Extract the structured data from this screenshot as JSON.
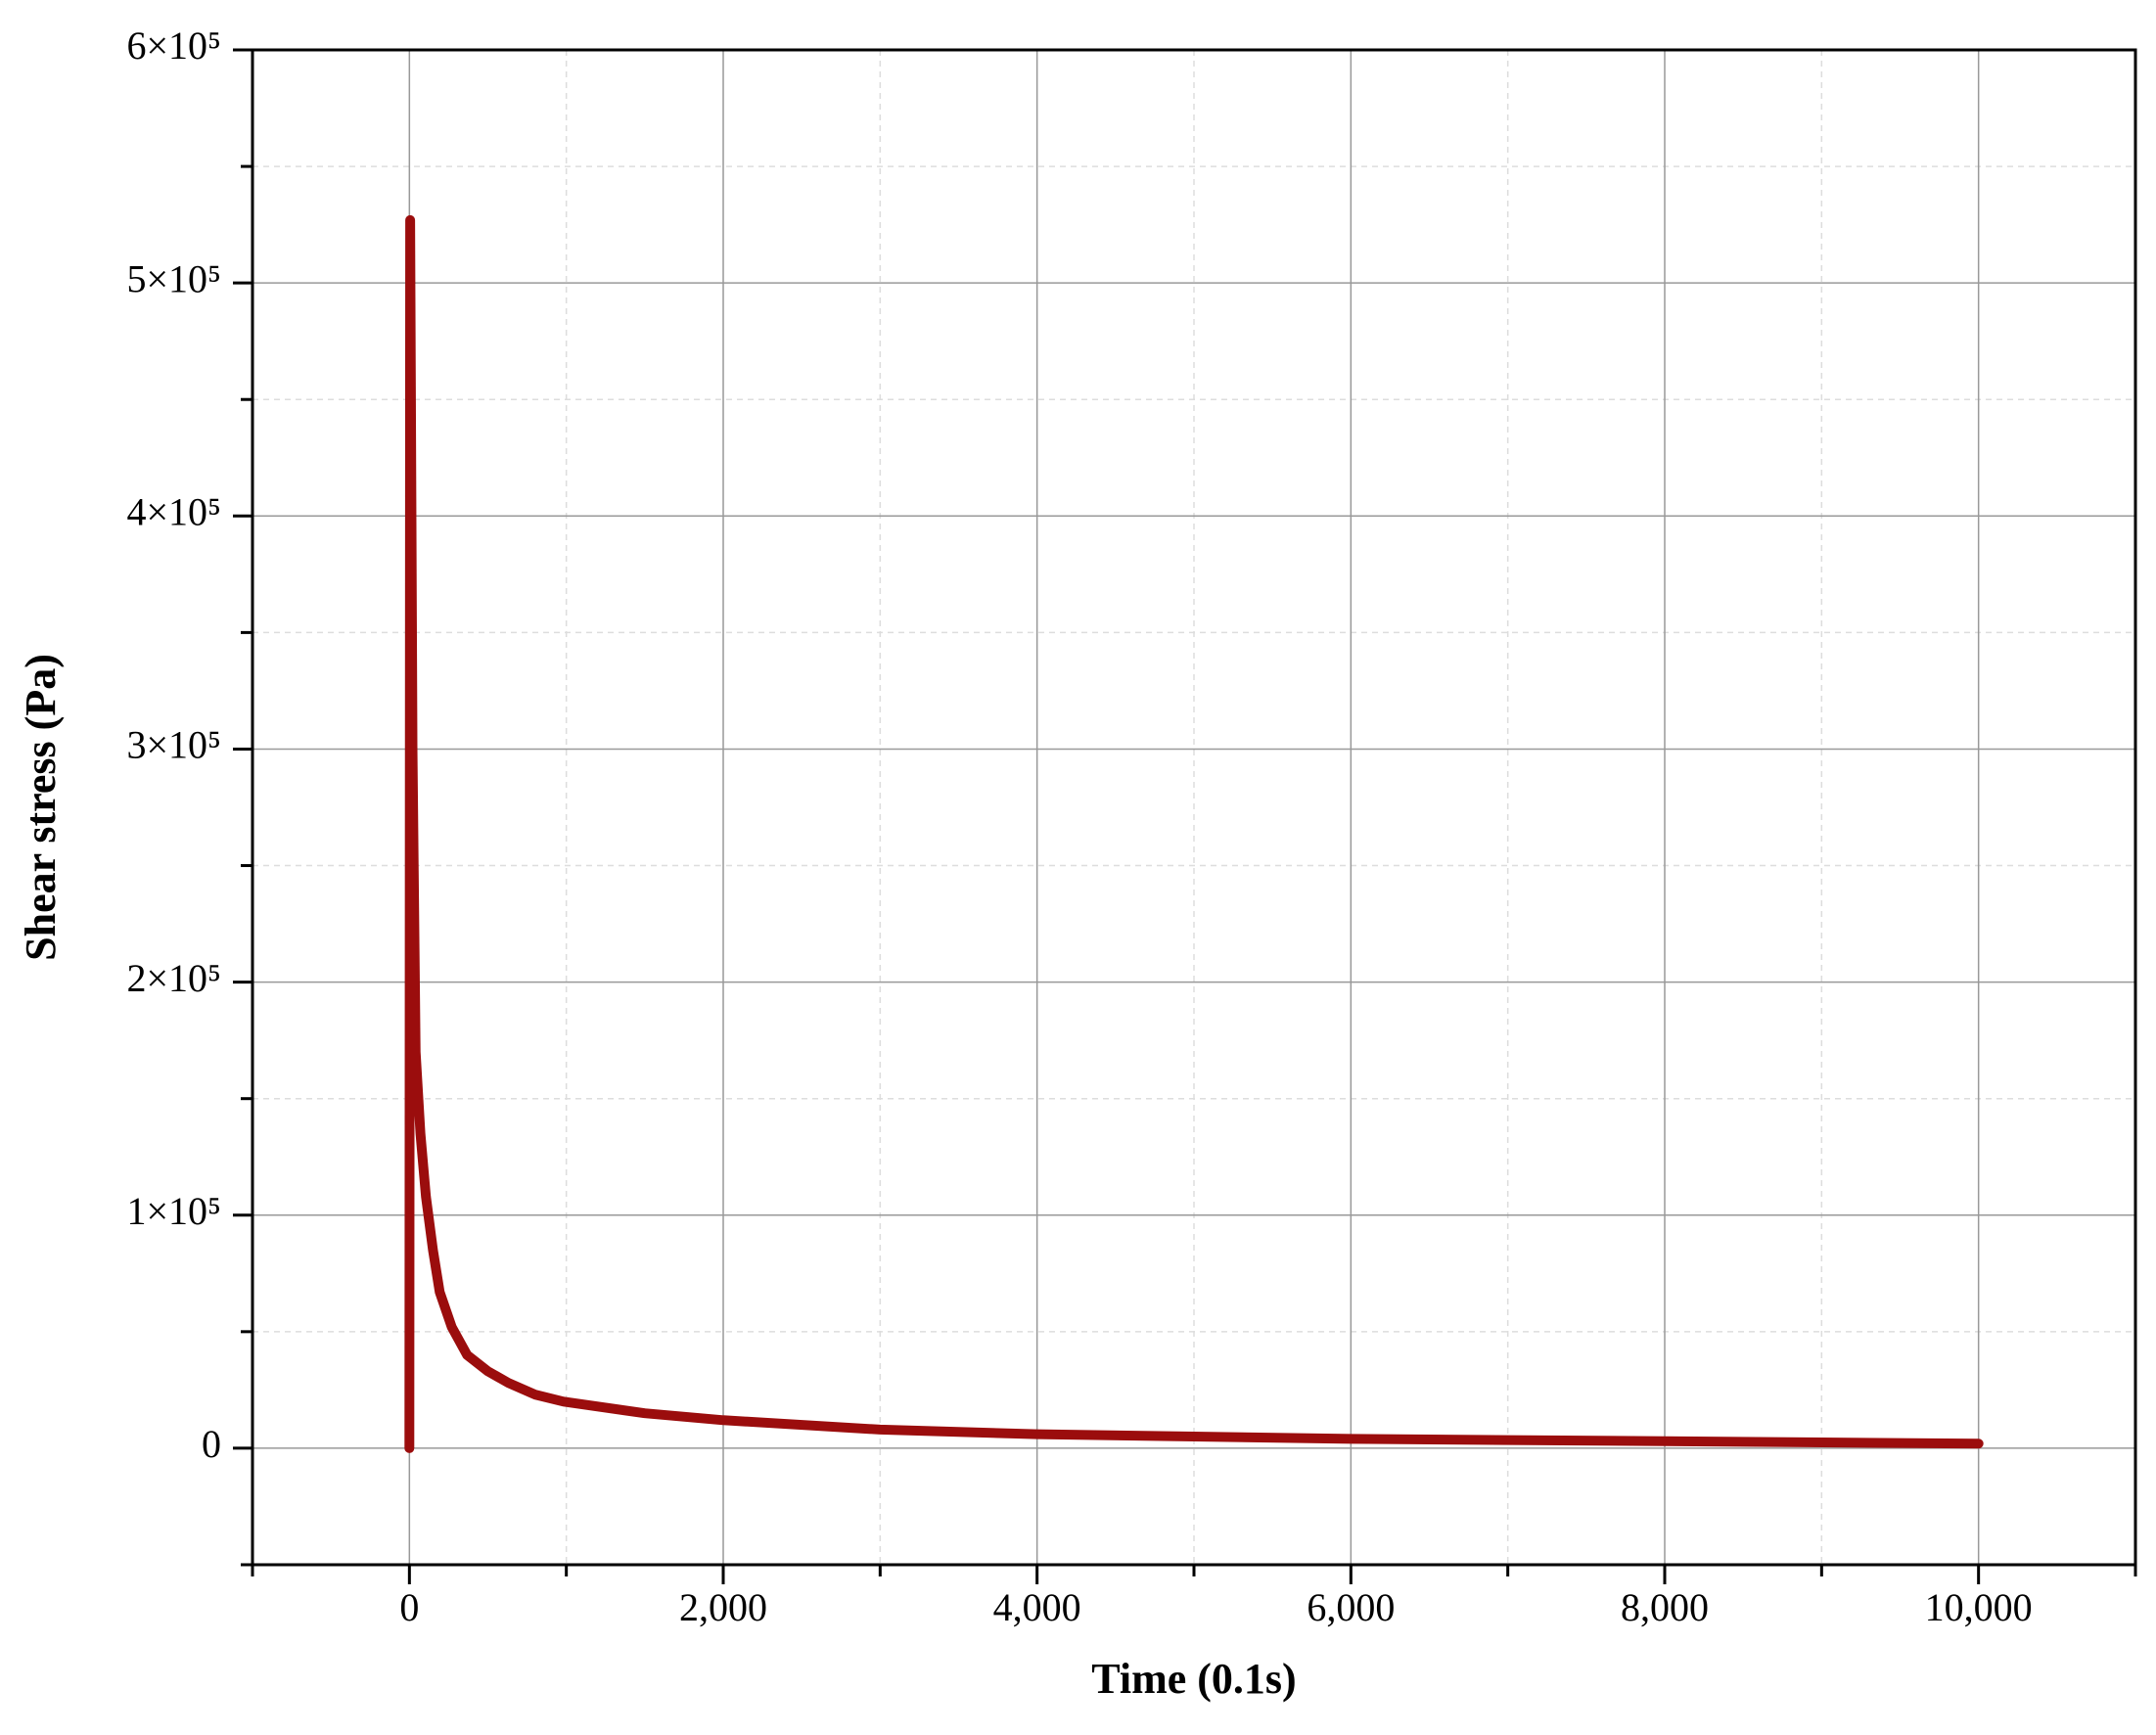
{
  "chart_data": {
    "type": "line",
    "x_label": "Time (0.1s)",
    "y_label": "Shear stress (Pa)",
    "x": [
      0,
      5,
      20,
      40,
      70,
      105,
      150,
      193,
      270,
      368,
      500,
      631,
      800,
      982,
      1500,
      2000,
      3000,
      4000,
      5000,
      6000,
      7000,
      8000,
      9000,
      10000
    ],
    "values": [
      0,
      527000,
      300000,
      170000,
      135000,
      108000,
      85000,
      67000,
      52000,
      40000,
      33000,
      28000,
      23000,
      20000,
      15000,
      12000,
      8000,
      6000,
      5000,
      4000,
      3500,
      3000,
      2500,
      2000
    ],
    "color": "#9b0d0d",
    "xlim": [
      -1000,
      11000
    ],
    "xticks": [
      0,
      {
        "value": 2000,
        "label": "2,000"
      },
      {
        "value": 4000,
        "label": "4,000"
      },
      {
        "value": 6000,
        "label": "6,000"
      },
      {
        "value": 8000,
        "label": "8,000"
      },
      {
        "value": 10000,
        "label": "10,000"
      }
    ],
    "xminorticks": [
      -1000,
      1000,
      3000,
      5000,
      7000,
      9000,
      11000
    ],
    "ylim": [
      -50000,
      600000
    ],
    "yticks": [
      0,
      {
        "value": 100000,
        "label": "1×10⁵"
      },
      {
        "value": 200000,
        "label": "2×10⁵"
      },
      {
        "value": 300000,
        "label": "3×10⁵"
      },
      {
        "value": 400000,
        "label": "4×10⁵"
      },
      {
        "value": 500000,
        "label": "5×10⁵"
      },
      {
        "value": 600000,
        "label": "6×10⁵"
      }
    ],
    "yminorticks": [
      -50000,
      50000,
      150000,
      250000,
      350000,
      450000,
      550000
    ],
    "grid": true
  }
}
